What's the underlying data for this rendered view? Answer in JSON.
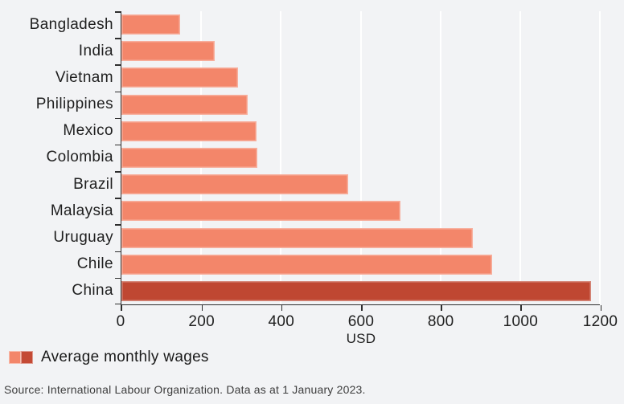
{
  "chart_data": {
    "type": "bar",
    "orientation": "horizontal",
    "categories": [
      "Bangladesh",
      "India",
      "Vietnam",
      "Philippines",
      "Mexico",
      "Colombia",
      "Brazil",
      "Malaysia",
      "Uruguay",
      "Chile",
      "China"
    ],
    "values": [
      148,
      233,
      293,
      316,
      339,
      341,
      568,
      700,
      882,
      929,
      1177
    ],
    "highlight_category": "China",
    "xlabel": "USD",
    "xlim": [
      0,
      1200
    ],
    "xticks": [
      0,
      200,
      400,
      600,
      800,
      1000,
      1200
    ],
    "xtick_labels": [
      "0",
      "200",
      "400",
      "600",
      "800",
      "1000",
      "1200"
    ],
    "grid": "vertical white gridlines at each x tick",
    "legend_position": "bottom-left",
    "colors": {
      "background": "#f2f3f5",
      "bar": "#f3866a",
      "highlight_bar": "#bf4732",
      "gridline": "#ffffff",
      "axis": "#2e2e2e",
      "text": "#1f1f1f"
    }
  },
  "legend": {
    "label": "Average monthly wages",
    "swatch_light": "#f3866a",
    "swatch_dark": "#c44a35"
  },
  "source": {
    "text": "Source: International Labour Organization. Data as at 1 January 2023."
  }
}
